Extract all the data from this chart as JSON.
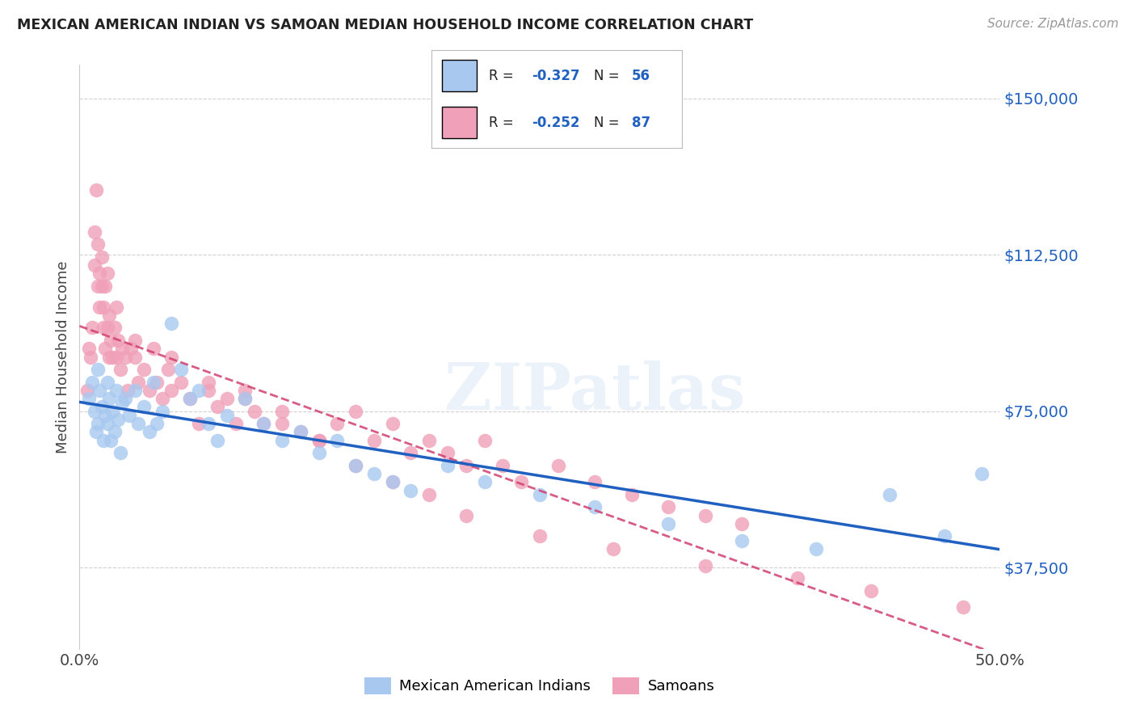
{
  "title": "MEXICAN AMERICAN INDIAN VS SAMOAN MEDIAN HOUSEHOLD INCOME CORRELATION CHART",
  "source": "Source: ZipAtlas.com",
  "ylabel": "Median Household Income",
  "y_ticks": [
    37500,
    75000,
    112500,
    150000
  ],
  "y_tick_labels": [
    "$37,500",
    "$75,000",
    "$112,500",
    "$150,000"
  ],
  "x_min": 0.0,
  "x_max": 0.5,
  "y_min": 18000,
  "y_max": 158000,
  "legend_r1": "-0.327",
  "legend_n1": "56",
  "legend_r2": "-0.252",
  "legend_n2": "87",
  "legend_label1": "Mexican American Indians",
  "legend_label2": "Samoans",
  "color_blue": "#a8c8f0",
  "color_pink": "#f0a0b8",
  "line_color_blue": "#2060c0",
  "line_color_pink": "#d04070",
  "watermark_text": "ZIPatlas",
  "blue_x": [
    0.005,
    0.007,
    0.008,
    0.009,
    0.01,
    0.01,
    0.011,
    0.012,
    0.013,
    0.014,
    0.015,
    0.015,
    0.016,
    0.017,
    0.018,
    0.019,
    0.02,
    0.021,
    0.022,
    0.023,
    0.025,
    0.027,
    0.03,
    0.032,
    0.035,
    0.038,
    0.04,
    0.042,
    0.045,
    0.05,
    0.055,
    0.06,
    0.065,
    0.07,
    0.075,
    0.08,
    0.09,
    0.1,
    0.11,
    0.12,
    0.13,
    0.14,
    0.15,
    0.16,
    0.17,
    0.18,
    0.2,
    0.22,
    0.25,
    0.28,
    0.32,
    0.36,
    0.4,
    0.44,
    0.47,
    0.49
  ],
  "blue_y": [
    78000,
    82000,
    75000,
    70000,
    85000,
    72000,
    80000,
    76000,
    68000,
    74000,
    82000,
    72000,
    78000,
    68000,
    75000,
    70000,
    80000,
    73000,
    65000,
    77000,
    78000,
    74000,
    80000,
    72000,
    76000,
    70000,
    82000,
    72000,
    75000,
    96000,
    85000,
    78000,
    80000,
    72000,
    68000,
    74000,
    78000,
    72000,
    68000,
    70000,
    65000,
    68000,
    62000,
    60000,
    58000,
    56000,
    62000,
    58000,
    55000,
    52000,
    48000,
    44000,
    42000,
    55000,
    45000,
    60000
  ],
  "pink_x": [
    0.004,
    0.005,
    0.006,
    0.007,
    0.008,
    0.008,
    0.009,
    0.01,
    0.01,
    0.011,
    0.011,
    0.012,
    0.012,
    0.013,
    0.013,
    0.014,
    0.014,
    0.015,
    0.015,
    0.016,
    0.016,
    0.017,
    0.018,
    0.019,
    0.02,
    0.02,
    0.021,
    0.022,
    0.023,
    0.025,
    0.026,
    0.028,
    0.03,
    0.032,
    0.035,
    0.038,
    0.04,
    0.042,
    0.045,
    0.048,
    0.05,
    0.055,
    0.06,
    0.065,
    0.07,
    0.075,
    0.08,
    0.085,
    0.09,
    0.095,
    0.1,
    0.11,
    0.12,
    0.13,
    0.14,
    0.15,
    0.16,
    0.17,
    0.18,
    0.19,
    0.2,
    0.21,
    0.22,
    0.23,
    0.24,
    0.26,
    0.28,
    0.3,
    0.32,
    0.34,
    0.36,
    0.03,
    0.05,
    0.07,
    0.09,
    0.11,
    0.13,
    0.15,
    0.17,
    0.19,
    0.21,
    0.25,
    0.29,
    0.34,
    0.39,
    0.43,
    0.48
  ],
  "pink_y": [
    80000,
    90000,
    88000,
    95000,
    110000,
    118000,
    128000,
    115000,
    105000,
    108000,
    100000,
    112000,
    105000,
    95000,
    100000,
    90000,
    105000,
    95000,
    108000,
    88000,
    98000,
    92000,
    88000,
    95000,
    100000,
    88000,
    92000,
    85000,
    90000,
    88000,
    80000,
    90000,
    88000,
    82000,
    85000,
    80000,
    90000,
    82000,
    78000,
    85000,
    80000,
    82000,
    78000,
    72000,
    80000,
    76000,
    78000,
    72000,
    80000,
    75000,
    72000,
    75000,
    70000,
    68000,
    72000,
    75000,
    68000,
    72000,
    65000,
    68000,
    65000,
    62000,
    68000,
    62000,
    58000,
    62000,
    58000,
    55000,
    52000,
    50000,
    48000,
    92000,
    88000,
    82000,
    78000,
    72000,
    68000,
    62000,
    58000,
    55000,
    50000,
    45000,
    42000,
    38000,
    35000,
    32000,
    28000
  ]
}
